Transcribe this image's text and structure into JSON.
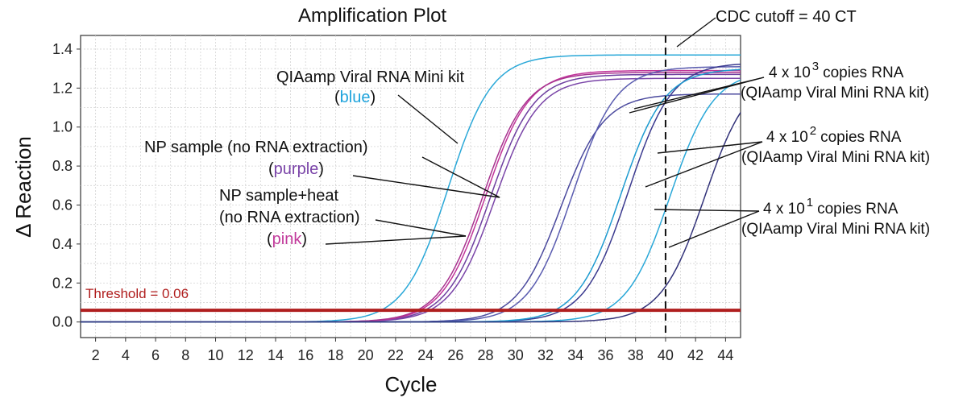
{
  "chart_data": {
    "type": "line",
    "title": "Amplification Plot",
    "xlabel": "Cycle",
    "ylabel": "Δ Reaction",
    "xlim": [
      1,
      45
    ],
    "ylim": [
      -0.08,
      1.47
    ],
    "x_ticks": [
      2,
      4,
      6,
      8,
      10,
      12,
      14,
      16,
      18,
      20,
      22,
      24,
      26,
      28,
      30,
      32,
      34,
      36,
      38,
      40,
      42,
      44
    ],
    "y_ticks": [
      "0.0",
      "0.2",
      "0.4",
      "0.6",
      "0.8",
      "1.0",
      "1.2",
      "1.4"
    ],
    "grid": true,
    "threshold": {
      "label": "Threshold = 0.06",
      "value": 0.06,
      "color": "#b01e1e"
    },
    "cutoff": {
      "label": "CDC cutoff = 40 CT",
      "value": 40
    },
    "series": [
      {
        "group": "QIAamp extracted",
        "color": "#2aa8d8",
        "plateau": 1.37,
        "midpoint": 25.5,
        "slope": 1.45
      },
      {
        "group": "NP sample",
        "color": "#6e3fa0",
        "plateau": 1.27,
        "midpoint": 28.3,
        "slope": 1.45
      },
      {
        "group": "NP sample",
        "color": "#7a45a8",
        "plateau": 1.25,
        "midpoint": 28.6,
        "slope": 1.45
      },
      {
        "group": "NP sample+heat",
        "color": "#c1359a",
        "plateau": 1.29,
        "midpoint": 28.0,
        "slope": 1.45
      },
      {
        "group": "NP sample+heat",
        "color": "#a8338f",
        "plateau": 1.28,
        "midpoint": 27.8,
        "slope": 1.45
      },
      {
        "group": "4x10^3",
        "color": "#4b4a9e",
        "plateau": 1.17,
        "midpoint": 33.0,
        "slope": 1.45
      },
      {
        "group": "4x10^3",
        "color": "#5a5cb0",
        "plateau": 1.31,
        "midpoint": 33.8,
        "slope": 1.45
      },
      {
        "group": "4x10^2",
        "color": "#3b3a8f",
        "plateau": 1.33,
        "midpoint": 37.5,
        "slope": 1.45
      },
      {
        "group": "4x10^2",
        "color": "#1d9bd0",
        "plateau": 1.3,
        "midpoint": 37.0,
        "slope": 1.45
      },
      {
        "group": "4x10^1",
        "color": "#2aa8d8",
        "plateau": 1.29,
        "midpoint": 40.3,
        "slope": 1.45
      },
      {
        "group": "4x10^1",
        "color": "#33337a",
        "plateau": 1.28,
        "midpoint": 42.6,
        "slope": 1.45
      }
    ],
    "annotations": {
      "qiaamp_title": "QIAamp Viral RNA Mini kit",
      "qiaamp_color_open": "(",
      "qiaamp_color_word": "blue",
      "qiaamp_color_close": ")",
      "np_title": "NP sample (no RNA extraction)",
      "np_color_open": "(",
      "np_color_word": "purple",
      "np_color_close": ")",
      "nph_title1": "NP sample+heat",
      "nph_title2": "(no RNA extraction)",
      "nph_color_open": "(",
      "nph_color_word": "pink",
      "nph_color_close": ")",
      "c3_main": "4 x 10",
      "c3_exp": "3",
      "c3_unit": "copies RNA",
      "c3_kit": "(QIAamp Viral Mini RNA kit)",
      "c2_main": "4 x 10",
      "c2_exp": "2",
      "c2_unit": "copies RNA",
      "c2_kit": "(QIAamp Viral Mini RNA kit)",
      "c1_main": "4 x 10",
      "c1_exp": "1",
      "c1_unit": "copies RNA",
      "c1_kit": "(QIAamp Viral Mini RNA kit)"
    },
    "colors": {
      "blue_word": "#1ea3dc",
      "purple_word": "#7a44a8",
      "pink_word": "#c23a9b",
      "threshold": "#b01e1e"
    }
  }
}
